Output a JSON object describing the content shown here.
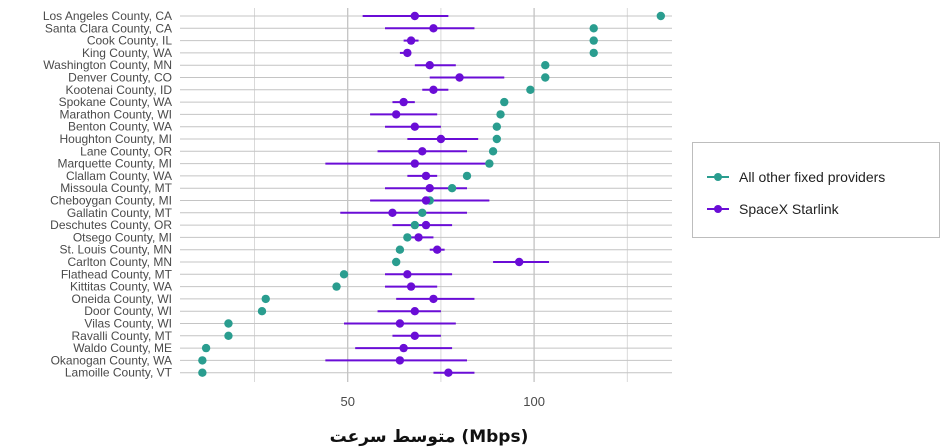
{
  "chart_data": {
    "type": "scatter",
    "xlabel": "متوسط سرعت (Mbps)",
    "ylabel": "",
    "xlim": [
      5,
      137
    ],
    "xticks": [
      50,
      100
    ],
    "grid": true,
    "legend_position": "right",
    "categories": [
      "Los Angeles County, CA",
      "Santa Clara County, CA",
      "Cook County, IL",
      "King County, WA",
      "Washington County, MN",
      "Denver County, CO",
      "Kootenai County, ID",
      "Spokane County, WA",
      "Marathon County, WI",
      "Benton County, WA",
      "Houghton County, MI",
      "Lane County, OR",
      "Marquette County, MI",
      "Clallam County, WA",
      "Missoula County, MT",
      "Cheboygan County, MI",
      "Gallatin County, MT",
      "Deschutes County, OR",
      "Otsego County, MI",
      "St. Louis County, MN",
      "Carlton County, MN",
      "Flathead County, MT",
      "Kittitas County, WA",
      "Oneida County, WI",
      "Door County, WI",
      "Vilas County, WI",
      "Ravalli County, MT",
      "Waldo County, ME",
      "Okanogan County, WA",
      "Lamoille County, VT"
    ],
    "series": [
      {
        "name": "All other fixed providers",
        "color": "#2a9d8f",
        "values": [
          134,
          116,
          116,
          116,
          103,
          103,
          99,
          92,
          91,
          90,
          90,
          89,
          88,
          82,
          78,
          72,
          70,
          68,
          66,
          64,
          63,
          49,
          47,
          28,
          27,
          18,
          18,
          12,
          11,
          11
        ]
      },
      {
        "name": "SpaceX Starlink",
        "color": "#6a0dd6",
        "values": [
          68,
          73,
          67,
          66,
          72,
          80,
          73,
          65,
          63,
          68,
          75,
          70,
          68,
          71,
          72,
          71,
          62,
          71,
          69,
          74,
          96,
          66,
          67,
          73,
          68,
          64,
          68,
          65,
          64,
          77
        ],
        "ci_low": [
          54,
          60,
          65,
          64,
          68,
          72,
          70,
          62,
          56,
          60,
          66,
          58,
          44,
          66,
          60,
          56,
          48,
          62,
          65,
          72,
          89,
          60,
          60,
          63,
          58,
          49,
          62,
          52,
          44,
          73
        ],
        "ci_high": [
          77,
          84,
          69,
          67,
          79,
          92,
          77,
          68,
          74,
          75,
          85,
          82,
          88,
          74,
          82,
          88,
          82,
          78,
          73,
          76,
          104,
          78,
          74,
          84,
          75,
          79,
          75,
          78,
          82,
          84
        ]
      }
    ]
  }
}
